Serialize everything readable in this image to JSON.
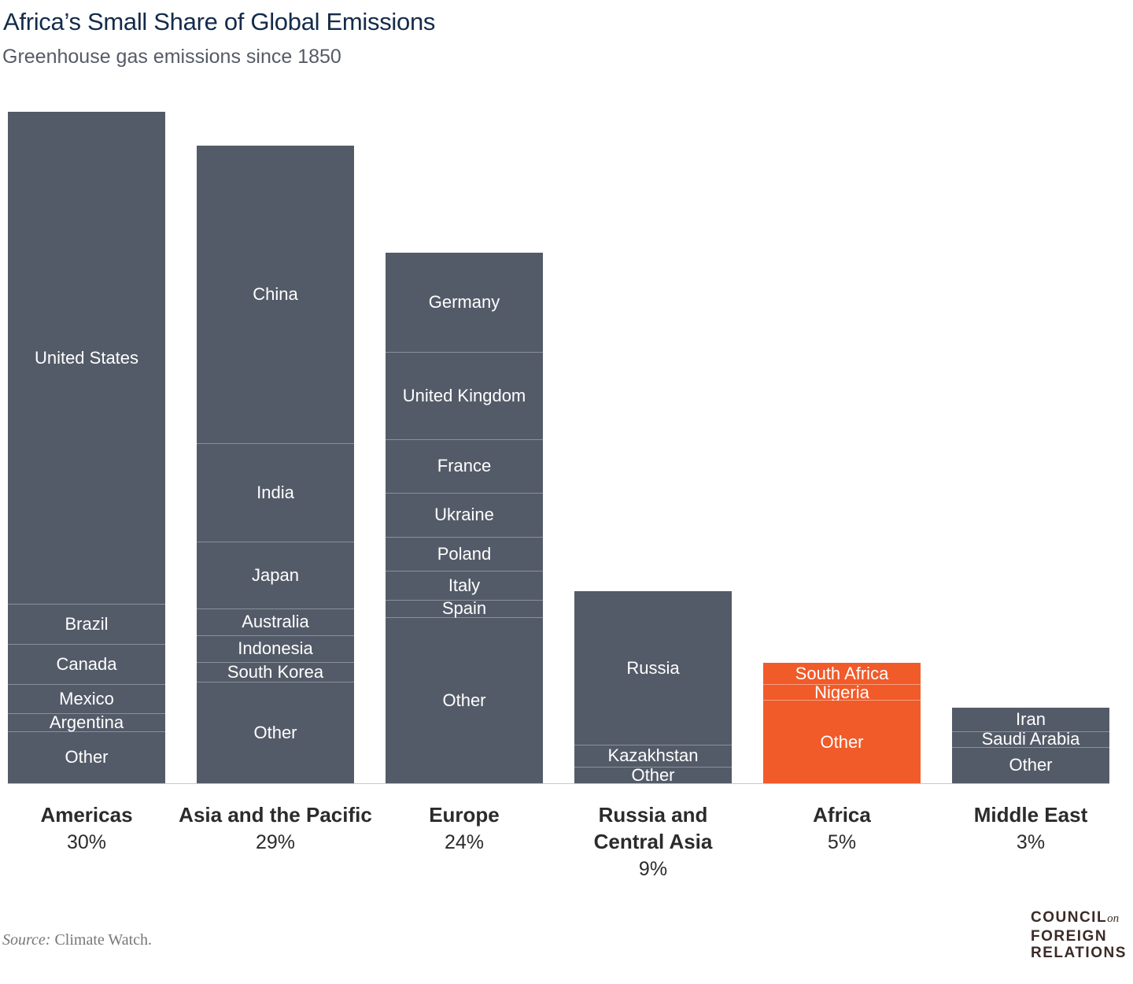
{
  "title": "Africa’s Small Share of Global Emissions",
  "subtitle": "Greenhouse gas emissions since 1850",
  "source_label": "Source:",
  "source_text": "Climate Watch.",
  "logo": {
    "line1": "COUNCIL",
    "on": "on",
    "line2": "FOREIGN",
    "line3": "RELATIONS"
  },
  "colors": {
    "default": "#545b68",
    "highlight": "#f15a29"
  },
  "chart_data": {
    "type": "bar",
    "stacked": true,
    "unit": "% of global emissions (approx.)",
    "ylim": [
      0,
      30
    ],
    "grid": false,
    "categories": [
      {
        "name": "Americas",
        "share_label": "30%",
        "highlight": false,
        "segments": [
          {
            "label": "United States",
            "value": 22.1
          },
          {
            "label": "Brazil",
            "value": 1.8
          },
          {
            "label": "Canada",
            "value": 1.8
          },
          {
            "label": "Mexico",
            "value": 1.3
          },
          {
            "label": "Argentina",
            "value": 0.8
          },
          {
            "label": "Other",
            "value": 2.3
          }
        ]
      },
      {
        "name": "Asia and the Pacific",
        "share_label": "29%",
        "highlight": false,
        "segments": [
          {
            "label": "China",
            "value": 13.4
          },
          {
            "label": "India",
            "value": 4.4
          },
          {
            "label": "Japan",
            "value": 3.0
          },
          {
            "label": "Australia",
            "value": 1.2
          },
          {
            "label": "Indonesia",
            "value": 1.2
          },
          {
            "label": "South Korea",
            "value": 0.9
          },
          {
            "label": "Other",
            "value": 4.5
          }
        ]
      },
      {
        "name": "Europe",
        "share_label": "24%",
        "highlight": false,
        "segments": [
          {
            "label": "Germany",
            "value": 4.5
          },
          {
            "label": "United Kingdom",
            "value": 3.9
          },
          {
            "label": "France",
            "value": 2.4
          },
          {
            "label": "Ukraine",
            "value": 2.0
          },
          {
            "label": "Poland",
            "value": 1.5
          },
          {
            "label": "Italy",
            "value": 1.3
          },
          {
            "label": "Spain",
            "value": 0.8
          },
          {
            "label": "Other",
            "value": 7.4
          }
        ]
      },
      {
        "name": "Russia and\nCentral Asia",
        "share_label": "9%",
        "highlight": false,
        "segments": [
          {
            "label": "Russia",
            "value": 6.9
          },
          {
            "label": "Kazakhstan",
            "value": 1.0
          },
          {
            "label": "Other",
            "value": 0.7
          }
        ]
      },
      {
        "name": "Africa",
        "share_label": "5%",
        "highlight": true,
        "segments": [
          {
            "label": "South Africa",
            "value": 1.0
          },
          {
            "label": "Nigeria",
            "value": 0.7
          },
          {
            "label": "Other",
            "value": 3.7
          }
        ]
      },
      {
        "name": "Middle East",
        "share_label": "3%",
        "highlight": false,
        "segments": [
          {
            "label": "Iran",
            "value": 1.1
          },
          {
            "label": "Saudi Arabia",
            "value": 0.7
          },
          {
            "label": "Other",
            "value": 1.6
          }
        ]
      }
    ]
  }
}
